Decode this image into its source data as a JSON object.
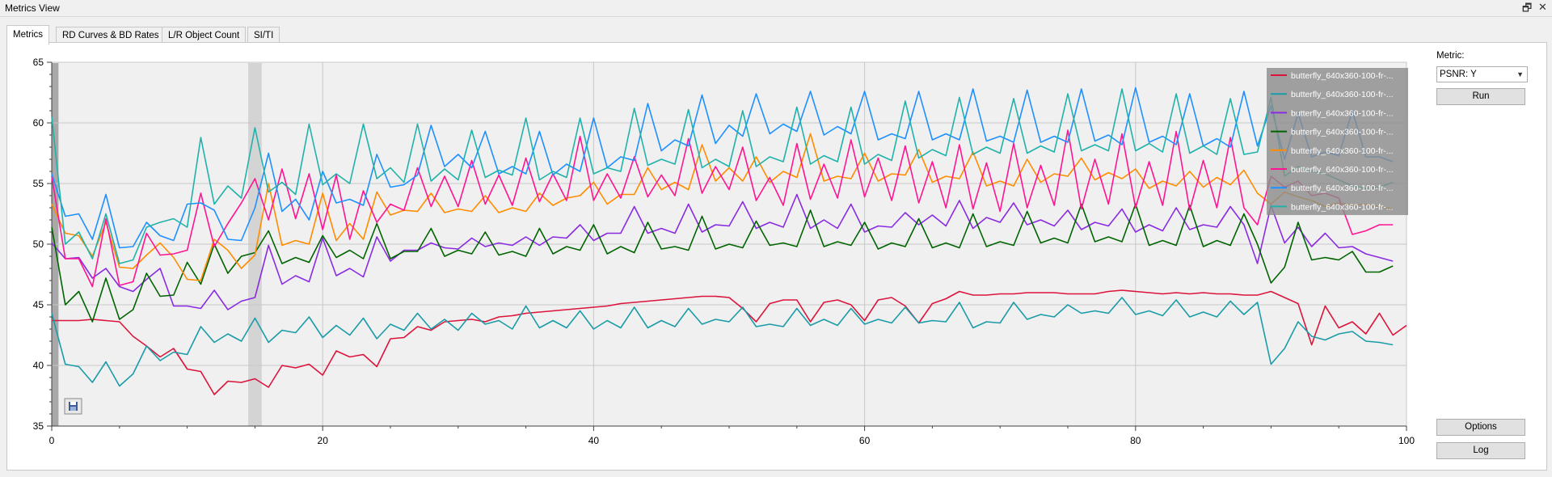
{
  "window": {
    "title": "Metrics View",
    "restore_glyph": "🗗",
    "close_glyph": "✕"
  },
  "tabs": [
    {
      "label": "Metrics",
      "active": true
    },
    {
      "label": "RD Curves & BD Rates",
      "active": false
    },
    {
      "label": "L/R Object Count",
      "active": false
    },
    {
      "label": "SI/TI",
      "active": false
    }
  ],
  "sidebar": {
    "metric_label": "Metric:",
    "metric_value": "PSNR: Y",
    "run_label": "Run",
    "options_label": "Options",
    "log_label": "Log"
  },
  "chart_data": {
    "type": "line",
    "xlim": [
      0,
      100
    ],
    "ylim": [
      35,
      65
    ],
    "x_ticks": [
      0,
      20,
      40,
      60,
      80,
      100
    ],
    "y_ticks": [
      35,
      40,
      45,
      50,
      55,
      60,
      65
    ],
    "grid": true,
    "legend_position": "top-right",
    "highlight_ranges": [
      [
        0,
        0.5
      ],
      [
        14.5,
        15.5
      ]
    ],
    "colors": [
      "#dc143c",
      "#1a9ca8",
      "#8a2be2",
      "#006400",
      "#ff8c00",
      "#ff1493",
      "#1e90ff",
      "#20b2aa"
    ],
    "series": [
      {
        "name": "butterfly_640x360-100-fr-...",
        "color": "#dc143c",
        "values": [
          43.7,
          43.7,
          43.7,
          43.8,
          43.7,
          43.6,
          42.4,
          41.6,
          40.7,
          41.4,
          39.7,
          39.5,
          37.6,
          38.7,
          38.6,
          38.9,
          38.2,
          40.0,
          39.8,
          40.1,
          39.2,
          41.2,
          40.7,
          40.9,
          39.9,
          42.2,
          42.3,
          43.2,
          42.9,
          43.6,
          43.7,
          43.8,
          43.6,
          44.0,
          44.1,
          44.3,
          44.4,
          44.5,
          44.6,
          44.7,
          44.8,
          44.9,
          45.1,
          45.2,
          45.3,
          45.4,
          45.5,
          45.6,
          45.7,
          45.7,
          45.6,
          44.7,
          43.6,
          45.1,
          45.4,
          45.4,
          43.6,
          45.2,
          45.4,
          45.0,
          43.7,
          45.4,
          45.6,
          44.9,
          43.5,
          45.1,
          45.5,
          46.1,
          45.8,
          45.8,
          45.9,
          45.9,
          46.0,
          46.0,
          46.0,
          45.9,
          45.9,
          45.9,
          46.1,
          46.2,
          46.1,
          46.0,
          45.9,
          46.0,
          45.9,
          46.0,
          45.9,
          45.9,
          45.8,
          45.8,
          46.1,
          45.6,
          45.1,
          41.7,
          44.9,
          43.1,
          43.6,
          42.6,
          44.3,
          42.5,
          43.3
        ]
      },
      {
        "name": "butterfly_640x360-100-fr-...",
        "color": "#1a9ca8",
        "values": [
          44.3,
          40.1,
          39.9,
          38.6,
          40.3,
          38.3,
          39.3,
          41.6,
          40.4,
          41.1,
          40.9,
          43.2,
          41.9,
          42.6,
          42.0,
          43.9,
          41.9,
          42.9,
          42.7,
          44.0,
          42.3,
          43.3,
          42.5,
          43.9,
          42.2,
          43.4,
          42.9,
          44.3,
          43.0,
          43.8,
          42.9,
          44.3,
          43.4,
          43.7,
          43.0,
          44.9,
          43.1,
          43.7,
          43.1,
          44.5,
          43.0,
          43.7,
          43.1,
          44.8,
          43.1,
          43.7,
          43.2,
          44.7,
          43.4,
          43.8,
          43.6,
          44.8,
          43.2,
          43.4,
          43.2,
          44.7,
          43.3,
          43.8,
          43.3,
          44.7,
          43.4,
          43.8,
          43.5,
          44.8,
          43.5,
          43.7,
          43.6,
          45.2,
          43.1,
          43.6,
          43.5,
          45.2,
          43.8,
          44.2,
          44.0,
          45.0,
          44.3,
          44.5,
          44.3,
          45.6,
          44.2,
          44.5,
          44.1,
          45.4,
          44.0,
          44.4,
          44.0,
          45.3,
          44.2,
          45.2,
          40.1,
          41.4,
          43.6,
          42.4,
          42.1,
          42.6,
          42.8,
          42.0,
          41.9,
          41.7
        ]
      },
      {
        "name": "butterfly_640x360-100-fr-...",
        "color": "#8a2be2",
        "values": [
          50.1,
          48.8,
          48.9,
          47.2,
          48.0,
          46.5,
          46.1,
          47.1,
          48.0,
          44.9,
          44.9,
          44.7,
          46.2,
          44.6,
          45.3,
          45.6,
          49.9,
          46.7,
          47.4,
          46.9,
          50.5,
          47.4,
          48.0,
          47.3,
          50.6,
          48.6,
          49.5,
          49.5,
          50.1,
          49.7,
          49.6,
          50.5,
          49.8,
          50.1,
          49.9,
          50.6,
          49.9,
          50.6,
          50.5,
          51.6,
          50.3,
          50.9,
          50.9,
          53.1,
          50.9,
          51.3,
          50.9,
          53.3,
          51.0,
          51.6,
          51.5,
          53.5,
          51.3,
          51.8,
          51.4,
          54.1,
          51.3,
          52.0,
          51.3,
          53.3,
          51.0,
          51.5,
          51.4,
          52.6,
          51.6,
          52.4,
          51.5,
          53.6,
          51.3,
          52.2,
          51.8,
          53.4,
          51.6,
          52.0,
          51.5,
          52.8,
          51.2,
          51.8,
          51.5,
          52.9,
          51.0,
          51.6,
          51.1,
          53.0,
          51.2,
          51.6,
          51.4,
          53.1,
          51.6,
          48.4,
          53.2,
          50.1,
          51.4,
          49.8,
          50.9,
          49.7,
          49.8,
          49.2,
          48.9,
          48.6
        ]
      },
      {
        "name": "butterfly_640x360-100-fr-...",
        "color": "#006400",
        "values": [
          51.4,
          45.0,
          46.1,
          43.6,
          47.2,
          43.8,
          44.6,
          47.6,
          45.7,
          45.8,
          48.5,
          46.7,
          50.0,
          47.6,
          49.0,
          49.3,
          51.1,
          48.4,
          48.9,
          48.5,
          50.7,
          48.9,
          49.5,
          48.8,
          51.7,
          48.8,
          49.4,
          49.4,
          51.3,
          49.0,
          49.5,
          49.2,
          51.0,
          49.1,
          49.4,
          49.0,
          51.3,
          49.2,
          49.8,
          49.5,
          51.6,
          49.2,
          49.8,
          49.3,
          51.8,
          49.6,
          49.8,
          49.5,
          52.3,
          49.6,
          50.0,
          49.7,
          51.9,
          49.9,
          50.1,
          49.8,
          52.8,
          49.8,
          50.2,
          49.9,
          51.8,
          49.6,
          50.1,
          49.8,
          52.1,
          49.7,
          50.1,
          49.7,
          52.5,
          49.8,
          50.2,
          49.9,
          52.7,
          50.1,
          50.5,
          50.1,
          53.3,
          50.2,
          50.6,
          50.2,
          53.3,
          49.9,
          50.3,
          49.9,
          53.2,
          49.8,
          50.3,
          49.9,
          52.5,
          50.0,
          46.8,
          48.1,
          51.8,
          48.7,
          48.9,
          48.7,
          49.4,
          47.7,
          47.7,
          48.2
        ]
      },
      {
        "name": "butterfly_640x360-100-fr-...",
        "color": "#ff8c00",
        "values": [
          53.3,
          50.9,
          50.7,
          49.0,
          51.8,
          48.1,
          48.0,
          49.1,
          50.1,
          48.9,
          47.1,
          47.0,
          50.4,
          49.5,
          48.0,
          49.1,
          55.0,
          49.9,
          50.3,
          50.0,
          54.2,
          50.3,
          51.7,
          50.4,
          54.3,
          52.4,
          52.8,
          52.7,
          54.2,
          52.6,
          52.9,
          52.7,
          54.0,
          52.6,
          53.0,
          52.7,
          54.2,
          53.2,
          53.8,
          54.0,
          55.1,
          53.3,
          54.1,
          54.1,
          56.3,
          54.5,
          55.1,
          54.5,
          58.2,
          55.2,
          56.3,
          55.2,
          57.2,
          55.1,
          56.0,
          55.5,
          59.1,
          55.2,
          55.6,
          55.4,
          57.5,
          55.2,
          55.8,
          55.7,
          57.8,
          55.1,
          55.6,
          55.4,
          57.6,
          54.8,
          55.2,
          54.8,
          57.0,
          55.1,
          55.8,
          55.6,
          57.1,
          55.3,
          55.9,
          55.4,
          56.2,
          54.6,
          55.2,
          54.8,
          56.0,
          54.7,
          55.5,
          54.9,
          56.1,
          54.2,
          53.3,
          54.3,
          53.9,
          53.6,
          53.1,
          53.4,
          53.2,
          53.3,
          53.1,
          52.9
        ]
      },
      {
        "name": "butterfly_640x360-100-fr-...",
        "color": "#ff1493",
        "values": [
          55.6,
          48.8,
          48.8,
          46.5,
          52.1,
          46.6,
          46.9,
          50.9,
          49.1,
          49.2,
          49.5,
          54.2,
          49.8,
          51.7,
          53.4,
          55.4,
          52.0,
          56.2,
          52.1,
          55.8,
          51.2,
          55.7,
          50.4,
          54.4,
          51.8,
          53.3,
          52.8,
          56.3,
          53.1,
          55.6,
          53.1,
          56.9,
          53.3,
          55.7,
          53.2,
          57.1,
          53.5,
          55.8,
          53.6,
          58.9,
          53.6,
          55.8,
          53.8,
          57.2,
          53.9,
          55.7,
          54.0,
          58.7,
          54.2,
          56.4,
          54.5,
          58.0,
          53.6,
          55.5,
          53.2,
          58.3,
          53.7,
          56.6,
          53.8,
          58.6,
          53.9,
          57.1,
          53.6,
          58.1,
          53.4,
          56.8,
          53.0,
          58.2,
          52.9,
          56.7,
          52.7,
          58.3,
          53.0,
          56.5,
          53.2,
          59.4,
          52.9,
          57.0,
          53.3,
          59.1,
          53.0,
          56.8,
          53.2,
          59.3,
          52.8,
          56.9,
          53.0,
          58.8,
          53.0,
          51.6,
          55.6,
          54.7,
          55.2,
          54.0,
          54.2,
          53.8,
          50.8,
          51.1,
          51.6,
          51.6
        ]
      },
      {
        "name": "butterfly_640x360-100-fr-...",
        "color": "#1e90ff",
        "values": [
          55.8,
          52.3,
          52.5,
          50.4,
          54.1,
          49.7,
          49.8,
          51.8,
          50.7,
          50.3,
          53.3,
          53.4,
          52.8,
          50.4,
          50.3,
          53.0,
          57.5,
          52.7,
          53.7,
          52.0,
          56.0,
          53.4,
          53.7,
          53.2,
          57.4,
          54.7,
          54.9,
          55.7,
          59.8,
          56.4,
          57.4,
          56.3,
          59.3,
          55.8,
          56.4,
          55.8,
          59.3,
          55.7,
          56.6,
          56.0,
          60.4,
          56.3,
          57.2,
          56.9,
          61.6,
          57.7,
          58.6,
          58.1,
          62.3,
          58.3,
          59.8,
          58.9,
          62.4,
          59.1,
          59.9,
          59.3,
          62.6,
          59.0,
          59.7,
          59.1,
          62.6,
          58.6,
          59.1,
          58.7,
          62.6,
          58.6,
          59.1,
          58.6,
          62.8,
          58.5,
          58.9,
          58.4,
          62.7,
          58.4,
          58.9,
          58.4,
          62.8,
          58.5,
          59.0,
          58.2,
          62.9,
          58.4,
          58.9,
          58.2,
          62.4,
          58.1,
          58.7,
          58.0,
          62.6,
          58.1,
          61.4,
          57.0,
          60.8,
          57.2,
          57.6,
          57.3,
          61.0,
          57.2,
          57.2,
          56.8
        ]
      },
      {
        "name": "butterfly_640x360-100-fr-...",
        "color": "#20b2aa",
        "values": [
          60.5,
          50.0,
          51.0,
          48.8,
          52.5,
          48.4,
          48.7,
          51.4,
          51.8,
          52.1,
          51.4,
          58.8,
          53.3,
          54.8,
          53.8,
          59.6,
          54.3,
          55.1,
          54.1,
          59.9,
          54.9,
          55.8,
          55.0,
          59.9,
          55.4,
          56.3,
          55.1,
          59.9,
          55.2,
          56.2,
          55.3,
          59.4,
          55.5,
          56.1,
          55.7,
          60.4,
          55.3,
          56.0,
          55.5,
          60.4,
          55.8,
          56.3,
          56.0,
          61.2,
          56.5,
          57.0,
          56.6,
          61.1,
          56.3,
          57.0,
          56.4,
          61.0,
          56.4,
          57.2,
          56.8,
          61.3,
          56.6,
          57.3,
          56.8,
          61.3,
          56.6,
          57.4,
          56.9,
          61.8,
          57.1,
          57.8,
          57.3,
          62.1,
          57.4,
          58.0,
          57.5,
          62.0,
          57.5,
          58.1,
          57.6,
          62.4,
          57.7,
          58.2,
          57.7,
          62.8,
          57.7,
          58.3,
          57.6,
          62.4,
          57.5,
          58.1,
          57.4,
          62.0,
          57.4,
          57.6,
          62.1,
          55.6,
          56.4,
          56.0,
          55.8,
          55.3,
          54.8,
          54.6,
          54.7,
          55.1
        ]
      }
    ]
  }
}
